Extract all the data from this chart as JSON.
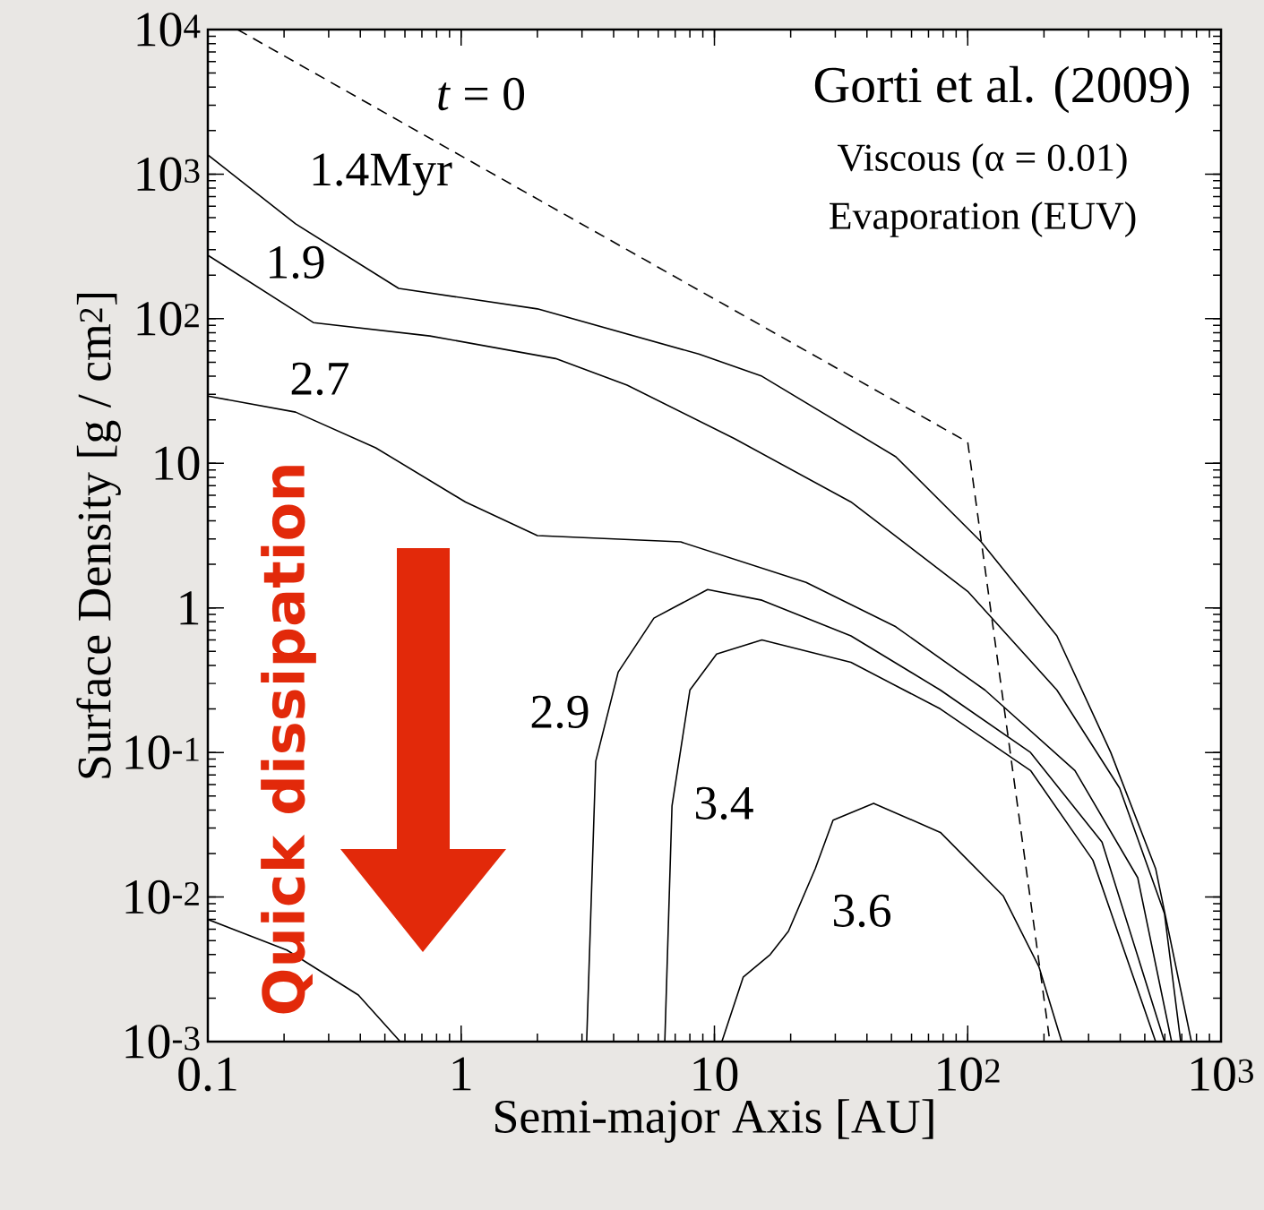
{
  "chart_data": {
    "type": "line",
    "title": "Gorti et al. (2009)",
    "xlabel": "Semi-major Axis [AU]",
    "ylabel": "Surface Density [g / cm$^{2}$]",
    "log": "xy",
    "grid": false,
    "xlim": [
      0.1,
      1000
    ],
    "ylim": [
      0.001,
      10000
    ],
    "xticks": [
      0.1,
      1,
      10,
      {
        "value": 100,
        "label": "10$^{2}$"
      },
      {
        "value": 1000,
        "label": "10$^{3}$"
      }
    ],
    "yticks": [
      {
        "value": 0.001,
        "label": "10$^{-3}$"
      },
      {
        "value": 0.01,
        "label": "10$^{-2}$"
      },
      {
        "value": 0.1,
        "label": "10$^{-1}$"
      },
      1,
      10,
      {
        "value": 100,
        "label": "10$^{2}$"
      },
      {
        "value": 1000,
        "label": "10$^{3}$"
      },
      {
        "value": 10000,
        "label": "10$^{4}$"
      }
    ],
    "series": [
      {
        "color": "#000000",
        "line_style": "dashed",
        "x": [
          0.131,
          100,
          211
        ],
        "values": [
          10000,
          14,
          0.001
        ]
      },
      {
        "color": "#000000",
        "x": [
          0.1,
          0.222,
          0.567,
          2.0,
          8.67,
          15.4,
          52,
          113,
          225,
          367,
          552,
          764
        ],
        "values": [
          1360,
          453,
          162,
          117,
          57,
          40,
          11.1,
          2.86,
          0.64,
          0.1,
          0.0157,
          0.001
        ]
      },
      {
        "color": "#000000",
        "x": [
          0.1,
          0.261,
          0.753,
          2.36,
          4.52,
          12.0,
          34.6,
          100,
          225,
          398,
          598,
          693
        ],
        "values": [
          275,
          94,
          76,
          53,
          34.7,
          14.8,
          5.4,
          1.3,
          0.27,
          0.0566,
          0.0077,
          0.001
        ]
      },
      {
        "color": "#000000",
        "x": [
          0.1,
          0.222,
          0.46,
          1.04,
          2.0,
          7.36,
          23,
          52,
          117,
          265,
          469,
          638
        ],
        "values": [
          29.2,
          22.6,
          12.8,
          5.4,
          3.16,
          2.86,
          1.5,
          0.74,
          0.27,
          0.075,
          0.0136,
          0.001
        ]
      },
      {
        "color": "#000000",
        "x": [
          3.13,
          3.4,
          4.17,
          5.77,
          9.4,
          15.4,
          34.6,
          78,
          177,
          339,
          598
        ],
        "values": [
          0.001,
          0.087,
          0.36,
          0.85,
          1.34,
          1.13,
          0.64,
          0.27,
          0.1,
          0.024,
          0.001
        ]
      },
      {
        "color": "#000000",
        "x": [
          6.37,
          6.8,
          8.0,
          10.2,
          15.4,
          34.6,
          78,
          177,
          312,
          552
        ],
        "values": [
          0.001,
          0.0426,
          0.27,
          0.48,
          0.6,
          0.42,
          0.2,
          0.075,
          0.018,
          0.001
        ]
      },
      {
        "color": "#000000",
        "x": [
          10.7,
          13,
          16.6,
          19.6,
          25,
          29.4,
          42.5,
          78,
          138,
          191,
          235
        ],
        "values": [
          0.001,
          0.0028,
          0.004,
          0.0058,
          0.0157,
          0.034,
          0.0445,
          0.028,
          0.0102,
          0.0033,
          0.001
        ]
      },
      {
        "color": "#000000",
        "x": [
          0.1,
          0.205,
          0.393,
          0.575
        ],
        "values": [
          0.007,
          0.0043,
          0.0021,
          0.001
        ]
      }
    ],
    "annotations": [
      "Viscous (α = 0.01)",
      "Evaporation (EUV)",
      "Quick dissipation",
      "*t* = 0",
      "1.4Myr",
      "1.9",
      "2.7",
      "2.9",
      "3.4",
      "3.6"
    ]
  }
}
